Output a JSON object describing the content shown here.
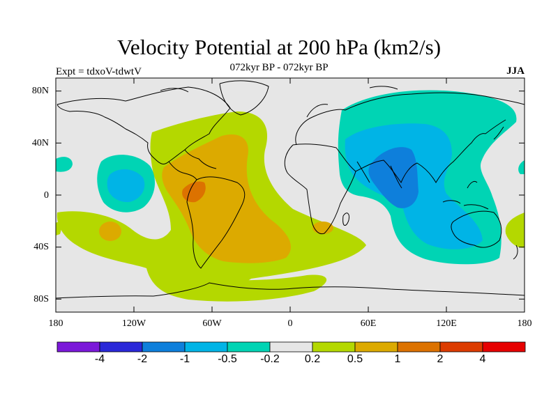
{
  "title": "Velocity Potential at 200 hPa (km2/s)",
  "subtitle": "072kyr BP - 072kyr BP",
  "experiment_label": "Expt = tdxoV-tdwtV",
  "season_label": "JJA",
  "y_ticks": [
    "80N",
    "40N",
    "0",
    "40S",
    "80S"
  ],
  "x_ticks": [
    "180",
    "120W",
    "60W",
    "0",
    "60E",
    "120E",
    "180"
  ],
  "colorbar": {
    "colors": [
      "#7b18d9",
      "#2a28d8",
      "#0e7fdb",
      "#00b4e6",
      "#00d4b4",
      "#e6e6e6",
      "#b4d800",
      "#dcaa00",
      "#dc7200",
      "#dc3c00",
      "#e60000"
    ],
    "labels": [
      "-4",
      "-2",
      "-1",
      "-0.5",
      "-0.2",
      "0.2",
      "0.5",
      "1",
      "2",
      "4"
    ]
  },
  "chart_data": {
    "type": "map",
    "projection": "cylindrical equidistant",
    "lon_range": [
      -180,
      180
    ],
    "lat_range": [
      -90,
      90
    ],
    "field": "velocity potential anomaly at 200 hPa",
    "units": "km2/s",
    "levels": [
      -4,
      -2,
      -1,
      -0.5,
      -0.2,
      0.2,
      0.5,
      1,
      2,
      4
    ],
    "regions": [
      {
        "name": "Atlantic / Americas positive anomaly",
        "level_range": [
          0.5,
          1
        ]
      },
      {
        "name": "northern South America maximum",
        "level_range": [
          1,
          2
        ]
      },
      {
        "name": "Indian Ocean / South Asia negative anomaly",
        "level_range": [
          -1,
          -0.5
        ]
      },
      {
        "name": "Eastern Pacific negative anomaly",
        "level_range": [
          -0.5,
          -0.2
        ]
      }
    ]
  }
}
